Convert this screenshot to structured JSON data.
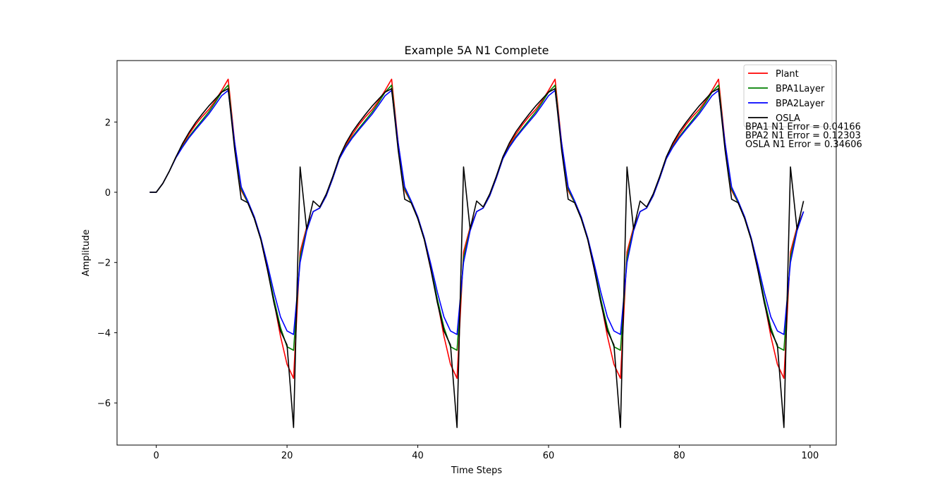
{
  "chart_data": {
    "type": "line",
    "title": "Example 5A N1 Complete",
    "xlabel": "Time Steps",
    "ylabel": "Amplitude",
    "xlim": [
      -6,
      104
    ],
    "ylim": [
      -7.2,
      3.75
    ],
    "xticks": [
      0,
      20,
      40,
      60,
      80,
      100
    ],
    "yticks": [
      -6,
      -4,
      -2,
      0,
      2
    ],
    "xtick_labels": [
      "0",
      "20",
      "40",
      "60",
      "80",
      "100"
    ],
    "ytick_labels": [
      "−6",
      "−4",
      "−2",
      "0",
      "2"
    ],
    "grid": false,
    "legend_position": "top-right",
    "x_start": -1,
    "series": [
      {
        "name": "Plant",
        "color": "#ff0000",
        "values": [
          0,
          0,
          0.25,
          0.6,
          1.0,
          1.35,
          1.65,
          1.92,
          2.15,
          2.35,
          2.6,
          2.9,
          3.22,
          1.4,
          0.05,
          -0.3,
          -0.75,
          -1.35,
          -2.2,
          -3.1,
          -4.1,
          -4.9,
          -5.3,
          -1.7,
          -1.0,
          -0.55,
          -0.45,
          -0.1,
          0.4,
          0.95,
          1.35,
          1.65,
          1.92,
          2.15,
          2.35,
          2.6,
          2.9,
          3.22,
          1.4,
          0.05,
          -0.3,
          -0.75,
          -1.35,
          -2.2,
          -3.1,
          -4.1,
          -4.9,
          -5.3,
          -1.7,
          -1.0,
          -0.55,
          -0.45,
          -0.1,
          0.4,
          0.95,
          1.35,
          1.65,
          1.92,
          2.15,
          2.35,
          2.6,
          2.9,
          3.22,
          1.4,
          0.05,
          -0.3,
          -0.75,
          -1.35,
          -2.2,
          -3.1,
          -4.1,
          -4.9,
          -5.3,
          -1.7,
          -1.0,
          -0.55,
          -0.45,
          -0.1,
          0.4,
          0.95,
          1.35,
          1.65,
          1.92,
          2.15,
          2.35,
          2.6,
          2.9,
          3.22,
          1.4,
          0.05,
          -0.3,
          -0.75,
          -1.35,
          -2.2,
          -3.1,
          -4.1,
          -4.9,
          -5.3,
          -1.7,
          -1.0,
          -0.55
        ]
      },
      {
        "name": "BPA1Layer",
        "color": "#008000",
        "values": [
          0,
          0,
          0.25,
          0.6,
          1.0,
          1.3,
          1.58,
          1.82,
          2.05,
          2.28,
          2.55,
          2.85,
          3.05,
          1.35,
          0.1,
          -0.3,
          -0.75,
          -1.35,
          -2.15,
          -3.05,
          -3.85,
          -4.4,
          -4.5,
          -1.85,
          -1.05,
          -0.55,
          -0.45,
          -0.1,
          0.4,
          0.95,
          1.3,
          1.58,
          1.82,
          2.05,
          2.28,
          2.55,
          2.85,
          3.05,
          1.35,
          0.1,
          -0.3,
          -0.75,
          -1.35,
          -2.15,
          -3.05,
          -3.85,
          -4.4,
          -4.5,
          -1.85,
          -1.05,
          -0.55,
          -0.45,
          -0.1,
          0.4,
          0.95,
          1.3,
          1.58,
          1.82,
          2.05,
          2.28,
          2.55,
          2.85,
          3.05,
          1.35,
          0.1,
          -0.3,
          -0.75,
          -1.35,
          -2.15,
          -3.05,
          -3.85,
          -4.4,
          -4.5,
          -1.85,
          -1.05,
          -0.55,
          -0.45,
          -0.1,
          0.4,
          0.95,
          1.3,
          1.58,
          1.82,
          2.05,
          2.28,
          2.55,
          2.85,
          3.05,
          1.35,
          0.1,
          -0.3,
          -0.75,
          -1.35,
          -2.15,
          -3.05,
          -3.85,
          -4.4,
          -4.5,
          -1.85,
          -1.05,
          -0.55
        ]
      },
      {
        "name": "BPA2Layer",
        "color": "#0000ff",
        "values": [
          0,
          0,
          0.25,
          0.6,
          0.98,
          1.28,
          1.55,
          1.78,
          2.0,
          2.22,
          2.48,
          2.75,
          2.9,
          1.4,
          0.15,
          -0.25,
          -0.7,
          -1.3,
          -2.05,
          -2.85,
          -3.55,
          -3.95,
          -4.05,
          -2.0,
          -1.1,
          -0.55,
          -0.45,
          -0.1,
          0.4,
          0.95,
          1.28,
          1.55,
          1.78,
          2.0,
          2.22,
          2.48,
          2.75,
          2.9,
          1.4,
          0.15,
          -0.25,
          -0.7,
          -1.3,
          -2.05,
          -2.85,
          -3.55,
          -3.95,
          -4.05,
          -2.0,
          -1.1,
          -0.55,
          -0.45,
          -0.1,
          0.4,
          0.95,
          1.28,
          1.55,
          1.78,
          2.0,
          2.22,
          2.48,
          2.75,
          2.9,
          1.4,
          0.15,
          -0.25,
          -0.7,
          -1.3,
          -2.05,
          -2.85,
          -3.55,
          -3.95,
          -4.05,
          -2.0,
          -1.1,
          -0.55,
          -0.45,
          -0.1,
          0.4,
          0.95,
          1.28,
          1.55,
          1.78,
          2.0,
          2.22,
          2.48,
          2.75,
          2.9,
          1.4,
          0.15,
          -0.25,
          -0.7,
          -1.3,
          -2.05,
          -2.85,
          -3.55,
          -3.95,
          -4.05,
          -2.0,
          -1.1,
          -0.55
        ]
      },
      {
        "name": "OSLA",
        "color": "#000000",
        "values": [
          0,
          0,
          0.25,
          0.6,
          1.0,
          1.38,
          1.7,
          1.98,
          2.22,
          2.45,
          2.65,
          2.85,
          2.95,
          1.2,
          -0.2,
          -0.3,
          -0.75,
          -1.35,
          -2.2,
          -3.15,
          -3.95,
          -4.35,
          -6.7,
          0.72,
          -1.05,
          -0.25,
          -0.42,
          -0.05,
          0.45,
          1.0,
          1.4,
          1.72,
          1.98,
          2.22,
          2.45,
          2.65,
          2.85,
          2.95,
          1.2,
          -0.2,
          -0.3,
          -0.75,
          -1.35,
          -2.2,
          -3.15,
          -3.95,
          -4.35,
          -6.7,
          0.72,
          -1.05,
          -0.25,
          -0.42,
          -0.05,
          0.45,
          1.0,
          1.4,
          1.72,
          1.98,
          2.22,
          2.45,
          2.65,
          2.85,
          2.95,
          1.2,
          -0.2,
          -0.3,
          -0.75,
          -1.35,
          -2.2,
          -3.15,
          -3.95,
          -4.35,
          -6.7,
          0.72,
          -1.05,
          -0.25,
          -0.42,
          -0.05,
          0.45,
          1.0,
          1.4,
          1.72,
          1.98,
          2.22,
          2.45,
          2.65,
          2.85,
          2.95,
          1.2,
          -0.2,
          -0.3,
          -0.75,
          -1.35,
          -2.2,
          -3.15,
          -3.95,
          -4.35,
          -6.7,
          0.72,
          -1.05,
          -0.25
        ]
      }
    ],
    "annotations": [
      "BPA1 N1 Error = 0.04166",
      "BPA2 N1 Error = 0.12303",
      "OSLA N1 Error = 0.34606"
    ]
  }
}
